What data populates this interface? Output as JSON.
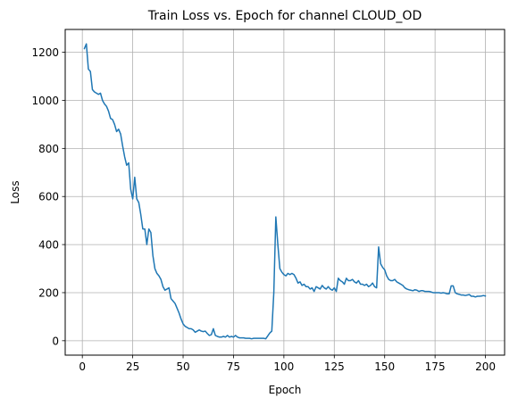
{
  "chart_data": {
    "type": "line",
    "title": "Train Loss vs. Epoch for channel CLOUD_OD",
    "xlabel": "Epoch",
    "ylabel": "Loss",
    "xlim": [
      -8.5,
      209.5
    ],
    "ylim": [
      -60,
      1295
    ],
    "xticks": [
      0,
      25,
      50,
      75,
      100,
      125,
      150,
      175,
      200
    ],
    "yticks": [
      0,
      200,
      400,
      600,
      800,
      1000,
      1200
    ],
    "grid": true,
    "series": [
      {
        "color": "#1f77b4",
        "x": [
          1,
          2,
          3,
          4,
          5,
          6,
          7,
          8,
          9,
          10,
          11,
          12,
          13,
          14,
          15,
          16,
          17,
          18,
          19,
          20,
          21,
          22,
          23,
          24,
          25,
          26,
          27,
          28,
          29,
          30,
          31,
          32,
          33,
          34,
          35,
          36,
          37,
          38,
          39,
          40,
          41,
          42,
          43,
          44,
          45,
          46,
          47,
          48,
          49,
          50,
          51,
          52,
          53,
          54,
          55,
          56,
          57,
          58,
          59,
          60,
          61,
          62,
          63,
          64,
          65,
          66,
          67,
          68,
          69,
          70,
          71,
          72,
          73,
          74,
          75,
          76,
          77,
          78,
          79,
          80,
          81,
          82,
          83,
          84,
          85,
          86,
          87,
          88,
          89,
          90,
          91,
          92,
          93,
          94,
          95,
          96,
          97,
          98,
          99,
          100,
          101,
          102,
          103,
          104,
          105,
          106,
          107,
          108,
          109,
          110,
          111,
          112,
          113,
          114,
          115,
          116,
          117,
          118,
          119,
          120,
          121,
          122,
          123,
          124,
          125,
          126,
          127,
          128,
          129,
          130,
          131,
          132,
          133,
          134,
          135,
          136,
          137,
          138,
          139,
          140,
          141,
          142,
          143,
          144,
          145,
          146,
          147,
          148,
          149,
          150,
          151,
          152,
          153,
          154,
          155,
          156,
          157,
          158,
          159,
          160,
          161,
          162,
          163,
          164,
          165,
          166,
          167,
          168,
          169,
          170,
          171,
          172,
          173,
          174,
          175,
          176,
          177,
          178,
          179,
          180,
          181,
          182,
          183,
          184,
          185,
          186,
          187,
          188,
          189,
          190,
          191,
          192,
          193,
          194,
          195,
          196,
          197,
          198,
          199,
          200
        ],
        "y": [
          1215,
          1235,
          1130,
          1120,
          1045,
          1035,
          1030,
          1025,
          1030,
          1000,
          985,
          975,
          955,
          925,
          920,
          900,
          870,
          880,
          860,
          810,
          765,
          730,
          740,
          630,
          590,
          680,
          590,
          575,
          525,
          465,
          465,
          400,
          465,
          450,
          355,
          300,
          280,
          270,
          255,
          225,
          210,
          215,
          220,
          175,
          165,
          155,
          135,
          115,
          90,
          70,
          60,
          55,
          50,
          50,
          45,
          35,
          40,
          45,
          40,
          38,
          40,
          30,
          22,
          25,
          50,
          22,
          18,
          15,
          15,
          18,
          15,
          22,
          15,
          18,
          15,
          22,
          15,
          12,
          12,
          12,
          10,
          10,
          10,
          8,
          10,
          10,
          10,
          10,
          10,
          10,
          8,
          20,
          32,
          40,
          200,
          515,
          400,
          300,
          285,
          275,
          270,
          280,
          275,
          280,
          275,
          260,
          240,
          245,
          230,
          235,
          225,
          225,
          215,
          220,
          205,
          225,
          220,
          215,
          230,
          220,
          215,
          225,
          215,
          210,
          220,
          205,
          260,
          250,
          245,
          235,
          260,
          250,
          250,
          255,
          245,
          240,
          250,
          235,
          235,
          230,
          235,
          225,
          230,
          240,
          225,
          220,
          390,
          320,
          305,
          295,
          270,
          255,
          250,
          250,
          255,
          245,
          240,
          235,
          230,
          220,
          215,
          212,
          210,
          208,
          212,
          210,
          205,
          208,
          208,
          205,
          205,
          205,
          203,
          200,
          200,
          200,
          200,
          198,
          200,
          198,
          195,
          195,
          228,
          228,
          200,
          195,
          193,
          190,
          190,
          188,
          190,
          192,
          185,
          185,
          182,
          185,
          185,
          186,
          188,
          186
        ]
      }
    ]
  }
}
